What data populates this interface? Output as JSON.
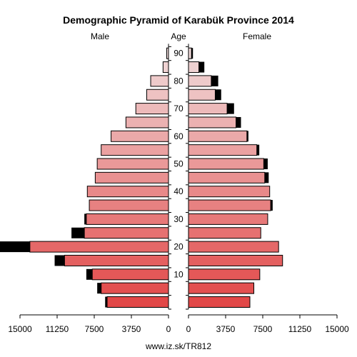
{
  "chart_data": {
    "type": "bar",
    "orientation": "horizontal-pyramid",
    "title": "Demographic Pyramid of Karabük Province 2014",
    "left_label": "Male",
    "center_label": "Age",
    "right_label": "Female",
    "footer": "www.iz.sk/TR812",
    "xlim": [
      0,
      15000
    ],
    "x_ticks": [
      15000,
      11250,
      7500,
      3750,
      0
    ],
    "x_ticks_right": [
      0,
      3750,
      7500,
      11250,
      15000
    ],
    "age_ticks": [
      90,
      80,
      70,
      60,
      50,
      40,
      30,
      20,
      10
    ],
    "age_groups": [
      "0-4",
      "5-9",
      "10-14",
      "15-19",
      "20-24",
      "25-29",
      "30-34",
      "35-39",
      "40-44",
      "45-49",
      "50-54",
      "55-59",
      "60-64",
      "65-69",
      "70-74",
      "75-79",
      "80-84",
      "85-89",
      "90+"
    ],
    "series": [
      {
        "name": "Male",
        "values": [
          6200,
          6800,
          7700,
          10500,
          14000,
          8500,
          8300,
          8000,
          8200,
          7400,
          7200,
          6800,
          5800,
          4300,
          3300,
          2200,
          1800,
          550,
          180
        ],
        "excess": [
          200,
          400,
          600,
          1000,
          4800,
          1300,
          200,
          0,
          0,
          0,
          0,
          0,
          0,
          0,
          0,
          0,
          0,
          0,
          0
        ]
      },
      {
        "name": "Female",
        "values": [
          6200,
          6600,
          7200,
          9500,
          9100,
          7300,
          8000,
          8300,
          8200,
          7700,
          7600,
          6900,
          5900,
          4800,
          3900,
          2700,
          2300,
          1050,
          300
        ],
        "excess": [
          0,
          0,
          0,
          0,
          0,
          0,
          0,
          200,
          0,
          400,
          400,
          250,
          150,
          500,
          700,
          600,
          700,
          550,
          150
        ]
      }
    ],
    "colors": {
      "young": "#e24848",
      "old": "#f0dada",
      "excess": "#000000",
      "stroke": "#000000"
    }
  }
}
